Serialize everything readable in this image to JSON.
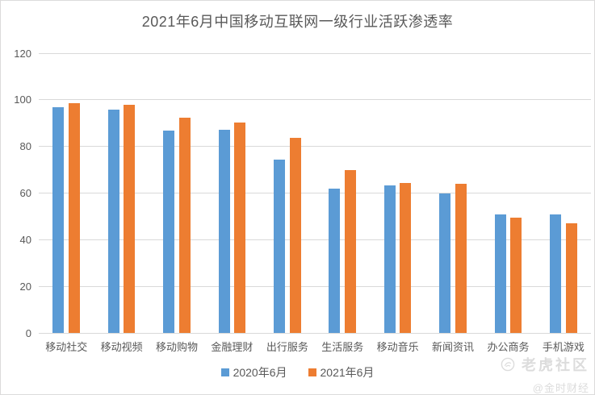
{
  "title": "2021年6月中国移动互联网一级行业活跃渗透率",
  "chart_data": {
    "type": "bar",
    "title": "2021年6月中国移动互联网一级行业活跃渗透率",
    "categories": [
      "移动社交",
      "移动视频",
      "移动购物",
      "金融理财",
      "出行服务",
      "生活服务",
      "移动音乐",
      "新闻资讯",
      "办公商务",
      "手机游戏"
    ],
    "series": [
      {
        "name": "2020年6月",
        "color": "#5B9BD5",
        "values": [
          97.0,
          95.8,
          86.9,
          87.0,
          74.3,
          61.8,
          63.2,
          60.0,
          51.0,
          51.0
        ]
      },
      {
        "name": "2021年6月",
        "color": "#ED7D31",
        "values": [
          98.6,
          97.8,
          92.3,
          90.4,
          83.8,
          70.0,
          64.2,
          64.1,
          49.5,
          47.0
        ]
      }
    ],
    "xlabel": "",
    "ylabel": "",
    "ylim": [
      0,
      120
    ],
    "yticks": [
      0,
      20,
      40,
      60,
      80,
      100,
      120
    ],
    "grid": true,
    "legend_position": "bottom",
    "gridline_color": "#d9d9d9",
    "text_color": "#595959"
  },
  "watermark": {
    "community": "老虎社区",
    "author": "@金时财经",
    "logo": "tiger-circle-logo"
  }
}
